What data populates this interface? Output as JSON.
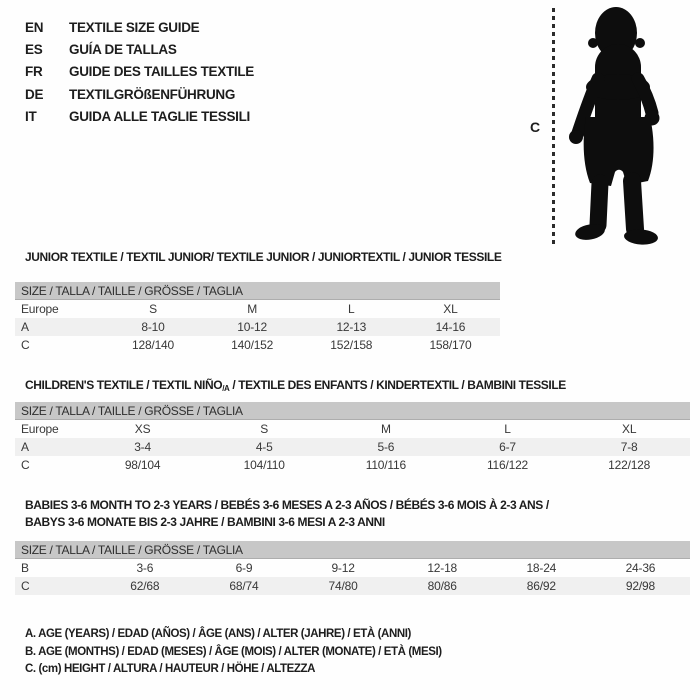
{
  "languages": [
    {
      "code": "EN",
      "label": "TEXTILE SIZE GUIDE"
    },
    {
      "code": "ES",
      "label": "GUÍA DE TALLAS"
    },
    {
      "code": "FR",
      "label": "GUIDE DES TAILLES TEXTILE"
    },
    {
      "code": "DE",
      "label": "TEXTILGRÖßENFÜHRUNG"
    },
    {
      "code": "IT",
      "label": "GUIDA ALLE TAGLIE TESSILI"
    }
  ],
  "figure": {
    "height_label": "C",
    "silhouette": "baby-toddler-silhouette"
  },
  "colors": {
    "header_bar": "#c7c7c7",
    "shaded_row": "#f0f0f0",
    "text": "#2e2e2e",
    "silhouette": "#0d0d0d"
  },
  "tables": [
    {
      "title": "JUNIOR TEXTILE / TEXTIL JUNIOR/ TEXTILE JUNIOR / JUNIORTEXTIL / JUNIOR TESSILE",
      "size_header": "SIZE / TALLA / TAILLE / GRÖSSE / TAGLIA",
      "rows": [
        {
          "label": "Europe",
          "values": [
            "S",
            "M",
            "L",
            "XL"
          ],
          "shaded": false
        },
        {
          "label": "A",
          "values": [
            "8-10",
            "10-12",
            "12-13",
            "14-16"
          ],
          "shaded": true
        },
        {
          "label": "C",
          "values": [
            "128/140",
            "140/152",
            "152/158",
            "158/170"
          ],
          "shaded": false
        }
      ]
    },
    {
      "title_parts": [
        "CHILDREN'S TEXTILE / TEXTIL NIÑO",
        "/A",
        " / TEXTILE DES ENFANTS / KINDERTEXTIL / BAMBINI TESSILE"
      ],
      "size_header": "SIZE / TALLA / TAILLE / GRÖSSE / TAGLIA",
      "rows": [
        {
          "label": "Europe",
          "values": [
            "XS",
            "S",
            "M",
            "L",
            "XL"
          ],
          "shaded": false
        },
        {
          "label": "A",
          "values": [
            "3-4",
            "4-5",
            "5-6",
            "6-7",
            "7-8"
          ],
          "shaded": true
        },
        {
          "label": "C",
          "values": [
            "98/104",
            "104/110",
            "110/116",
            "116/122",
            "122/128"
          ],
          "shaded": false
        }
      ]
    },
    {
      "title_lines": [
        "BABIES 3-6 MONTH TO 2-3 YEARS / BEBÉS 3-6 MESES A 2-3 AÑOS / BÉBÉS 3-6 MOIS À 2-3 ANS /",
        "BABYS 3-6 MONATE BIS 2-3 JAHRE / BAMBINI 3-6 MESI A 2-3 ANNI"
      ],
      "size_header": "SIZE / TALLA / TAILLE / GRÖSSE / TAGLIA",
      "rows": [
        {
          "label": "B",
          "values": [
            "3-6",
            "6-9",
            "9-12",
            "12-18",
            "18-24",
            "24-36"
          ],
          "shaded": false
        },
        {
          "label": "C",
          "values": [
            "62/68",
            "68/74",
            "74/80",
            "80/86",
            "86/92",
            "92/98"
          ],
          "shaded": true
        }
      ]
    }
  ],
  "footnotes": [
    "A. AGE (YEARS) / EDAD (AÑOS) / ÂGE (ANS) / ALTER (JAHRE) / ETÀ (ANNI)",
    "B. AGE (MONTHS) / EDAD (MESES) / ÂGE (MOIS) / ALTER (MONATE) / ETÀ (MESI)",
    "C. (cm) HEIGHT / ALTURA / HAUTEUR / HÖHE / ALTEZZA"
  ]
}
